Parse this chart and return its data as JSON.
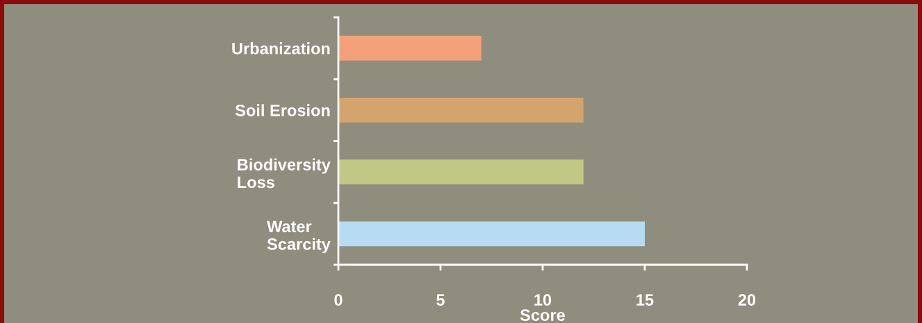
{
  "chart_data": {
    "type": "bar",
    "orientation": "horizontal",
    "xlabel": "Score",
    "categories": [
      "Urbanization",
      "Soil Erosion",
      "Biodiversity\nLoss",
      "Water\nScarcity"
    ],
    "values": [
      7,
      12,
      12,
      15
    ],
    "colors": [
      "#f4a07a",
      "#d4a46e",
      "#c0c984",
      "#b7dcf2"
    ],
    "xlim": [
      0,
      20
    ],
    "xticks": [
      0,
      5,
      10,
      15,
      20
    ],
    "grid": false
  }
}
